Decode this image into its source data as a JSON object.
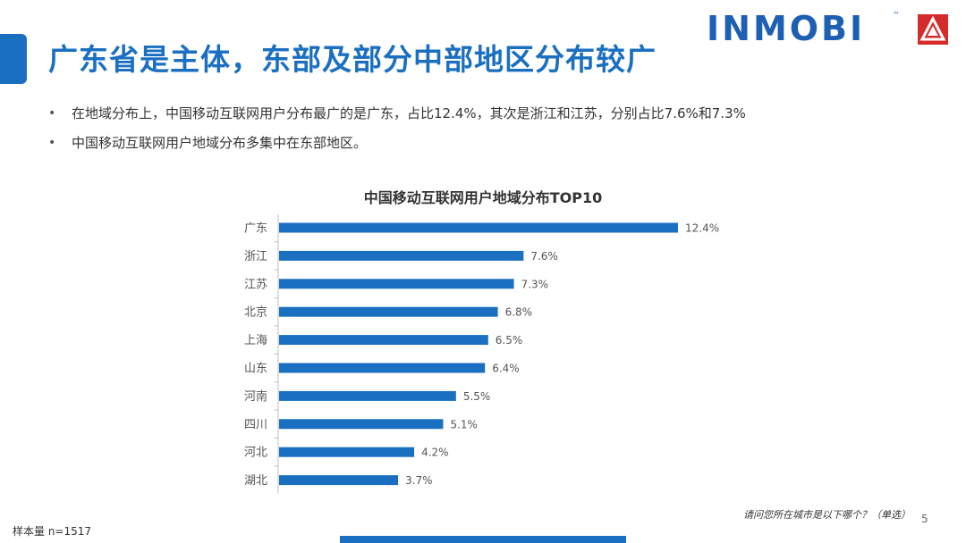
{
  "header": {
    "title": "广东省是主体，东部及部分中部地区分布较广",
    "logo_text": "INMOBI",
    "logo_tm": "™"
  },
  "bullets": [
    "在地域分布上，中国移动互联网用户分布最广的是广东，占比12.4%，其次是浙江和江苏，分别占比7.6%和7.3%",
    "中国移动互联网用户地域分布多集中在东部地区。"
  ],
  "chart_data": {
    "type": "bar",
    "orientation": "horizontal",
    "title": "中国移动互联网用户地域分布TOP10",
    "categories": [
      "广东",
      "浙江",
      "江苏",
      "北京",
      "上海",
      "山东",
      "河南",
      "四川",
      "河北",
      "湖北"
    ],
    "values": [
      12.4,
      7.6,
      7.3,
      6.8,
      6.5,
      6.4,
      5.5,
      5.1,
      4.2,
      3.7
    ],
    "value_labels": [
      "12.4%",
      "7.6%",
      "7.3%",
      "6.8%",
      "6.5%",
      "6.4%",
      "5.5%",
      "5.1%",
      "4.2%",
      "3.7%"
    ],
    "xlim": [
      0,
      12.4
    ],
    "grid": false,
    "legend": "none",
    "bar_color": "#1a6fc1"
  },
  "footer": {
    "question": "请问您所在城市是以下哪个？（单选）",
    "page_number": "5",
    "sample": "样本量 n=1517"
  },
  "colors": {
    "accent": "#1a6fc1",
    "logo": "#1d5fb2",
    "logo_badge": "#d52b2b"
  }
}
